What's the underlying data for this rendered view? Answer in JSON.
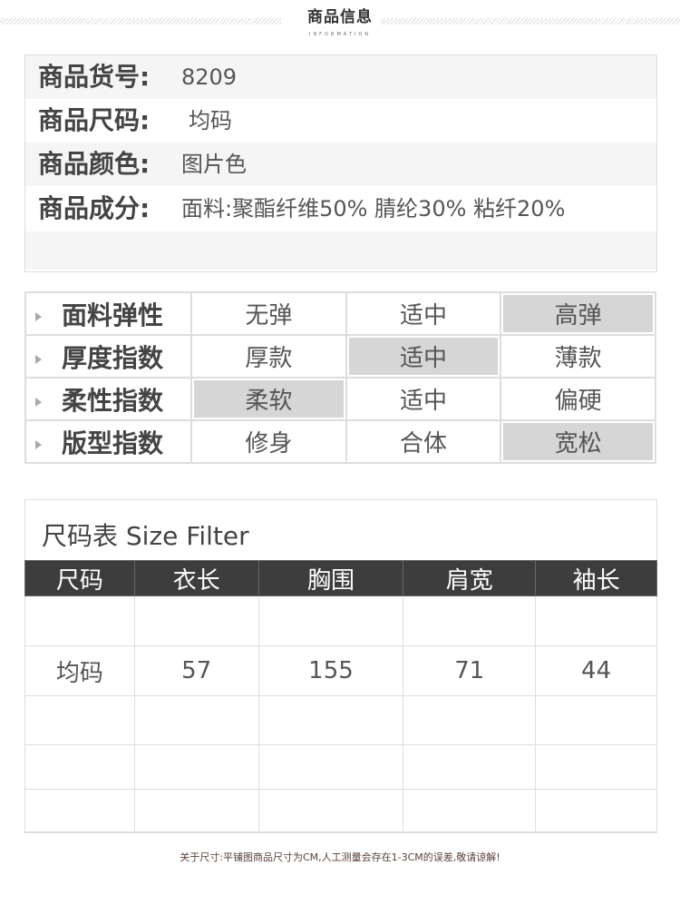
{
  "header": {
    "title": "商品信息",
    "subtitle": "INFORMATION"
  },
  "info": [
    {
      "label": "商品货号:",
      "value": "8209"
    },
    {
      "label": "商品尺码:",
      "value": "均码"
    },
    {
      "label": "商品颜色:",
      "value": "图片色"
    },
    {
      "label": "商品成分:",
      "value": "面料:聚酯纤维50% 腈纶30% 粘纤20%"
    },
    {
      "label": "",
      "value": ""
    }
  ],
  "attributes": [
    {
      "label": "面料弹性",
      "options": [
        "无弹",
        "适中",
        "高弹"
      ],
      "selected": 2
    },
    {
      "label": "厚度指数",
      "options": [
        "厚款",
        "适中",
        "薄款"
      ],
      "selected": 1
    },
    {
      "label": "柔性指数",
      "options": [
        "柔软",
        "适中",
        "偏硬"
      ],
      "selected": 0
    },
    {
      "label": "版型指数",
      "options": [
        "修身",
        "合体",
        "宽松"
      ],
      "selected": 2
    }
  ],
  "size_table": {
    "title": "尺码表 Size Filter",
    "headers": [
      "尺码",
      "衣长",
      "胸围",
      "肩宽",
      "袖长"
    ],
    "rows": [
      [
        "",
        "",
        "",
        "",
        ""
      ],
      [
        "均码",
        "57",
        "155",
        "71",
        "44"
      ],
      [
        "",
        "",
        "",
        "",
        ""
      ],
      [
        "",
        "",
        "",
        "",
        ""
      ],
      [
        "",
        "",
        "",
        "",
        ""
      ]
    ]
  },
  "footer": "关于尺寸:平铺图商品尺寸为CM,人工测量会存在1-3CM的误差,敬请谅解!",
  "colors": {
    "header_bg": "#3d3d3d",
    "selected": "#d6d6d6",
    "footer_text": "#5a3e36"
  }
}
